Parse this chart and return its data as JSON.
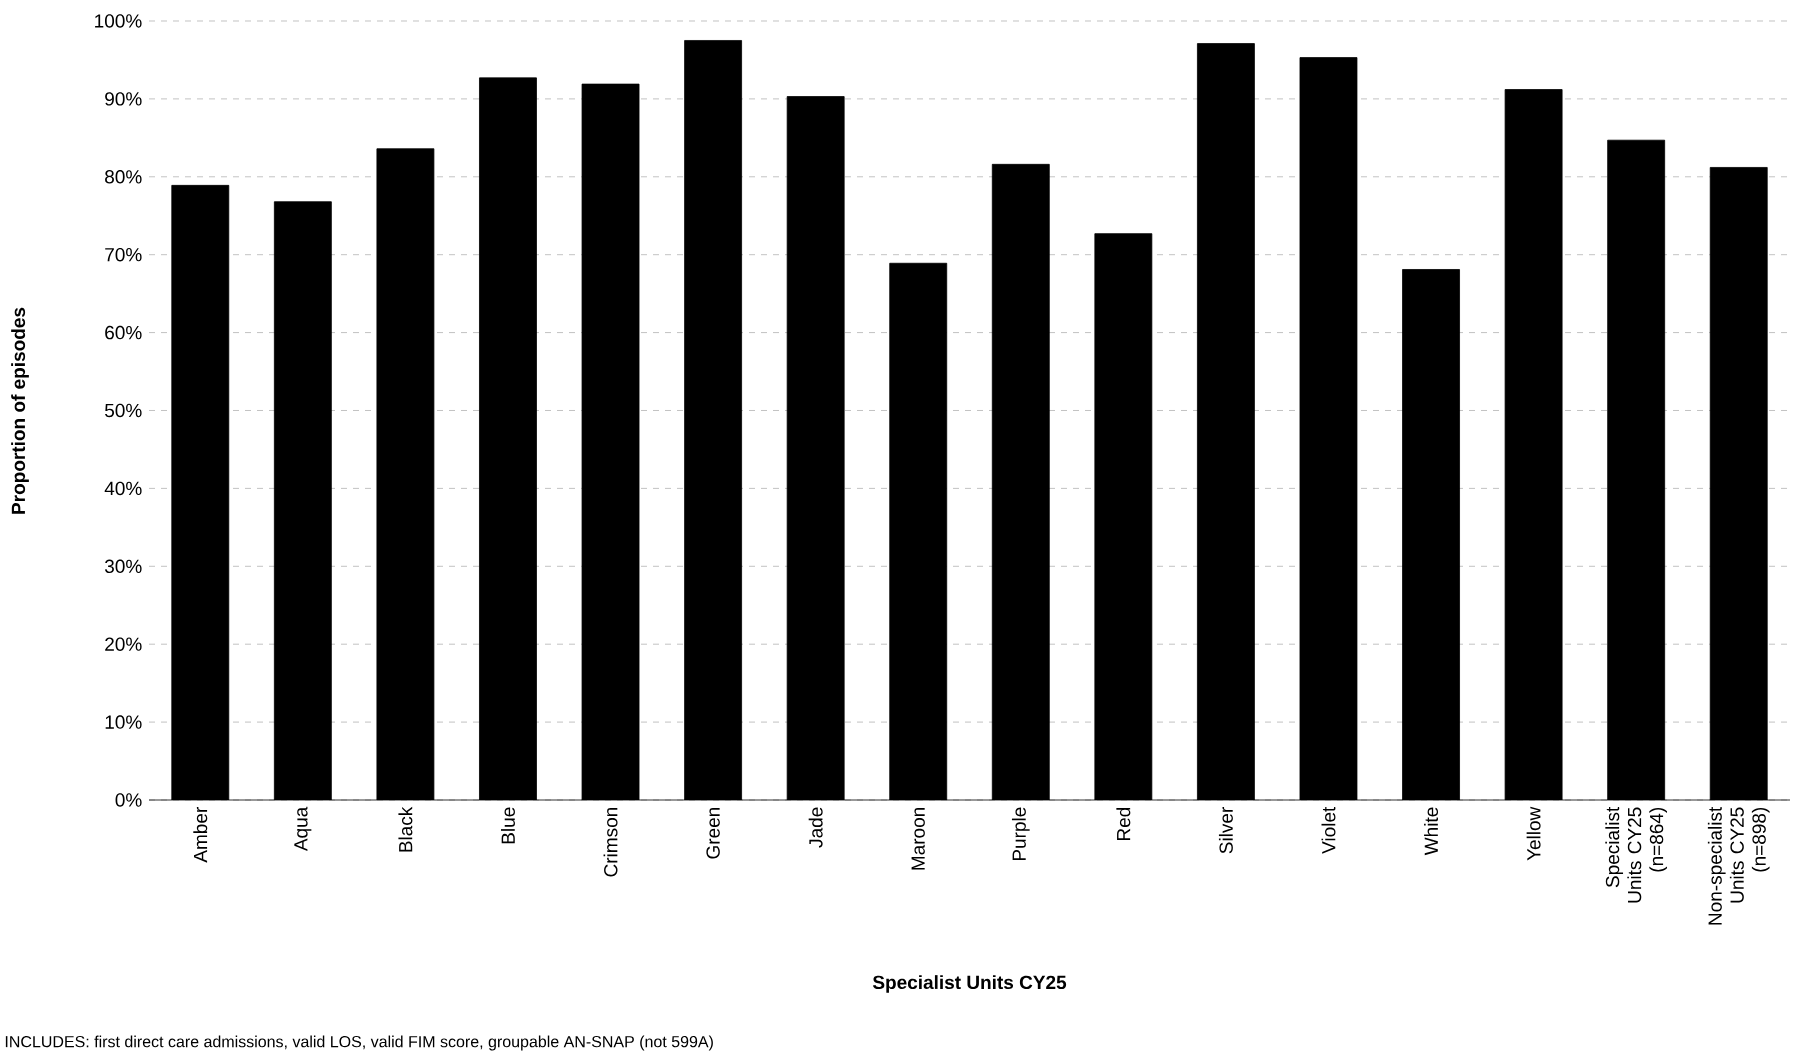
{
  "chart_data": {
    "type": "bar",
    "xlabel": "Specialist Units CY25",
    "ylabel": "Proportion of episodes",
    "categories": [
      "Amber",
      "Aqua",
      "Black",
      "Blue",
      "Crimson",
      "Green",
      "Jade",
      "Maroon",
      "Purple",
      "Red",
      "Silver",
      "Violet",
      "White",
      "Yellow",
      "Specialist Units CY25 (n=864)",
      "Non-specialist Units CY25 (n=898)"
    ],
    "values": [
      78.9,
      76.8,
      83.6,
      92.7,
      91.9,
      97.5,
      90.3,
      68.9,
      81.6,
      72.7,
      97.1,
      95.3,
      68.1,
      91.2,
      84.7,
      81.2
    ],
    "color": "#000000",
    "ylim": [
      0,
      100
    ],
    "yticks": [
      {
        "value": 0,
        "label": "0%"
      },
      {
        "value": 10,
        "label": "10%"
      },
      {
        "value": 20,
        "label": "20%"
      },
      {
        "value": 30,
        "label": "30%"
      },
      {
        "value": 40,
        "label": "40%"
      },
      {
        "value": 50,
        "label": "50%"
      },
      {
        "value": 60,
        "label": "60%"
      },
      {
        "value": 70,
        "label": "70%"
      },
      {
        "value": 80,
        "label": "80%"
      },
      {
        "value": 90,
        "label": "90%"
      },
      {
        "value": 100,
        "label": "100%"
      }
    ],
    "grid": "y",
    "annotations": [
      "INCLUDES: first direct care admissions, valid LOS, valid FIM score, groupable AN-SNAP (not 599A)"
    ]
  }
}
